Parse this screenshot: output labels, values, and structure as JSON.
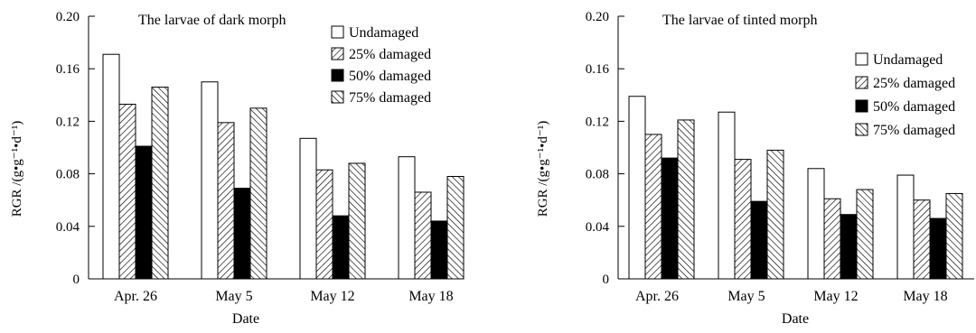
{
  "figure": {
    "series_names": [
      "Undamaged",
      "25% damaged",
      "50% damaged",
      "75% damaged"
    ],
    "series_patterns": [
      "none",
      "diag-right",
      "solid",
      "diag-left"
    ]
  },
  "chart_data": [
    {
      "type": "bar",
      "title": "The larvae of dark morph",
      "xlabel": "Date",
      "ylabel": "RGR /(g•g⁻¹•d⁻¹)",
      "ylim": [
        0,
        0.2
      ],
      "yticks": [
        "0",
        "0.04",
        "0.08",
        "0.12",
        "0.16",
        "0.20"
      ],
      "categories": [
        "Apr. 26",
        "May  5",
        "May  12",
        "May  18"
      ],
      "legend_position": "top-right",
      "grid": false,
      "series": [
        {
          "name": "Undamaged",
          "values": [
            0.171,
            0.15,
            0.107,
            0.093
          ]
        },
        {
          "name": "25% damaged",
          "values": [
            0.133,
            0.119,
            0.083,
            0.066
          ]
        },
        {
          "name": "50% damaged",
          "values": [
            0.101,
            0.069,
            0.048,
            0.044
          ]
        },
        {
          "name": "75% damaged",
          "values": [
            0.146,
            0.13,
            0.088,
            0.078
          ]
        }
      ]
    },
    {
      "type": "bar",
      "title": "The larvae of tinted  morph",
      "xlabel": "Date",
      "ylabel": "RGR /(g•g⁻¹•d⁻¹)",
      "ylim": [
        0,
        0.2
      ],
      "yticks": [
        "0",
        "0.04",
        "0.08",
        "0.12",
        "0.16",
        "0.20"
      ],
      "categories": [
        "Apr. 26",
        "May  5",
        "May  12",
        "May  18"
      ],
      "legend_position": "top-right",
      "grid": false,
      "series": [
        {
          "name": "Undamaged",
          "values": [
            0.139,
            0.127,
            0.084,
            0.079
          ]
        },
        {
          "name": "25% damaged",
          "values": [
            0.11,
            0.091,
            0.061,
            0.06
          ]
        },
        {
          "name": "50% damaged",
          "values": [
            0.092,
            0.059,
            0.049,
            0.046
          ]
        },
        {
          "name": "75% damaged",
          "values": [
            0.121,
            0.098,
            0.068,
            0.065
          ]
        }
      ]
    }
  ]
}
